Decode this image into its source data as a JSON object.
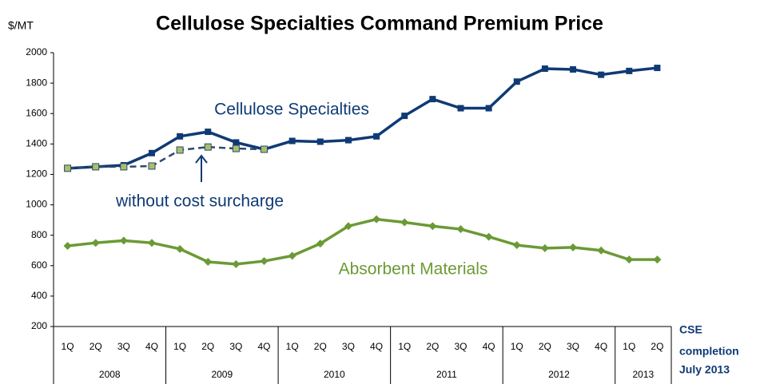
{
  "chart_data": {
    "type": "line",
    "title": "Cellulose Specialties Command Premium Price",
    "y_axis_label": "$/MT",
    "categories": [
      "1Q",
      "2Q",
      "3Q",
      "4Q",
      "1Q",
      "2Q",
      "3Q",
      "4Q",
      "1Q",
      "2Q",
      "3Q",
      "4Q",
      "1Q",
      "2Q",
      "3Q",
      "4Q",
      "1Q",
      "2Q",
      "3Q",
      "4Q",
      "1Q",
      "2Q"
    ],
    "year_groups": [
      {
        "label": "2008",
        "count": 4
      },
      {
        "label": "2009",
        "count": 4
      },
      {
        "label": "2010",
        "count": 4
      },
      {
        "label": "2011",
        "count": 4
      },
      {
        "label": "2012",
        "count": 4
      },
      {
        "label": "2013",
        "count": 2
      }
    ],
    "series": [
      {
        "name": "Cellulose Specialties",
        "color": "#0f3a75",
        "marker": "square",
        "dashed": false,
        "values": [
          1240,
          1250,
          1260,
          1340,
          1450,
          1480,
          1410,
          1365,
          1420,
          1415,
          1425,
          1450,
          1585,
          1695,
          1635,
          1635,
          1810,
          1895,
          1890,
          1855,
          1880,
          1900
        ]
      },
      {
        "name": "without cost surcharge",
        "color": "#2b4a6f",
        "marker": "square",
        "marker_fill": "#a9bf6a",
        "dashed": true,
        "values": [
          1240,
          1250,
          1250,
          1255,
          1360,
          1380,
          1370,
          1365,
          null,
          null,
          null,
          null,
          null,
          null,
          null,
          null,
          null,
          null,
          null,
          null,
          null,
          null
        ]
      },
      {
        "name": "Absorbent Materials",
        "color": "#6b9a35",
        "marker": "diamond",
        "dashed": false,
        "values": [
          730,
          750,
          765,
          750,
          710,
          625,
          610,
          630,
          665,
          745,
          860,
          905,
          885,
          860,
          840,
          790,
          735,
          715,
          720,
          700,
          640,
          640
        ]
      }
    ],
    "ylim": [
      200,
      2000
    ],
    "yticks": [
      200,
      400,
      600,
      800,
      1000,
      1200,
      1400,
      1600,
      1800,
      2000
    ],
    "grid": false,
    "annotation": [
      "CSE",
      "completion",
      "July 2013"
    ]
  }
}
